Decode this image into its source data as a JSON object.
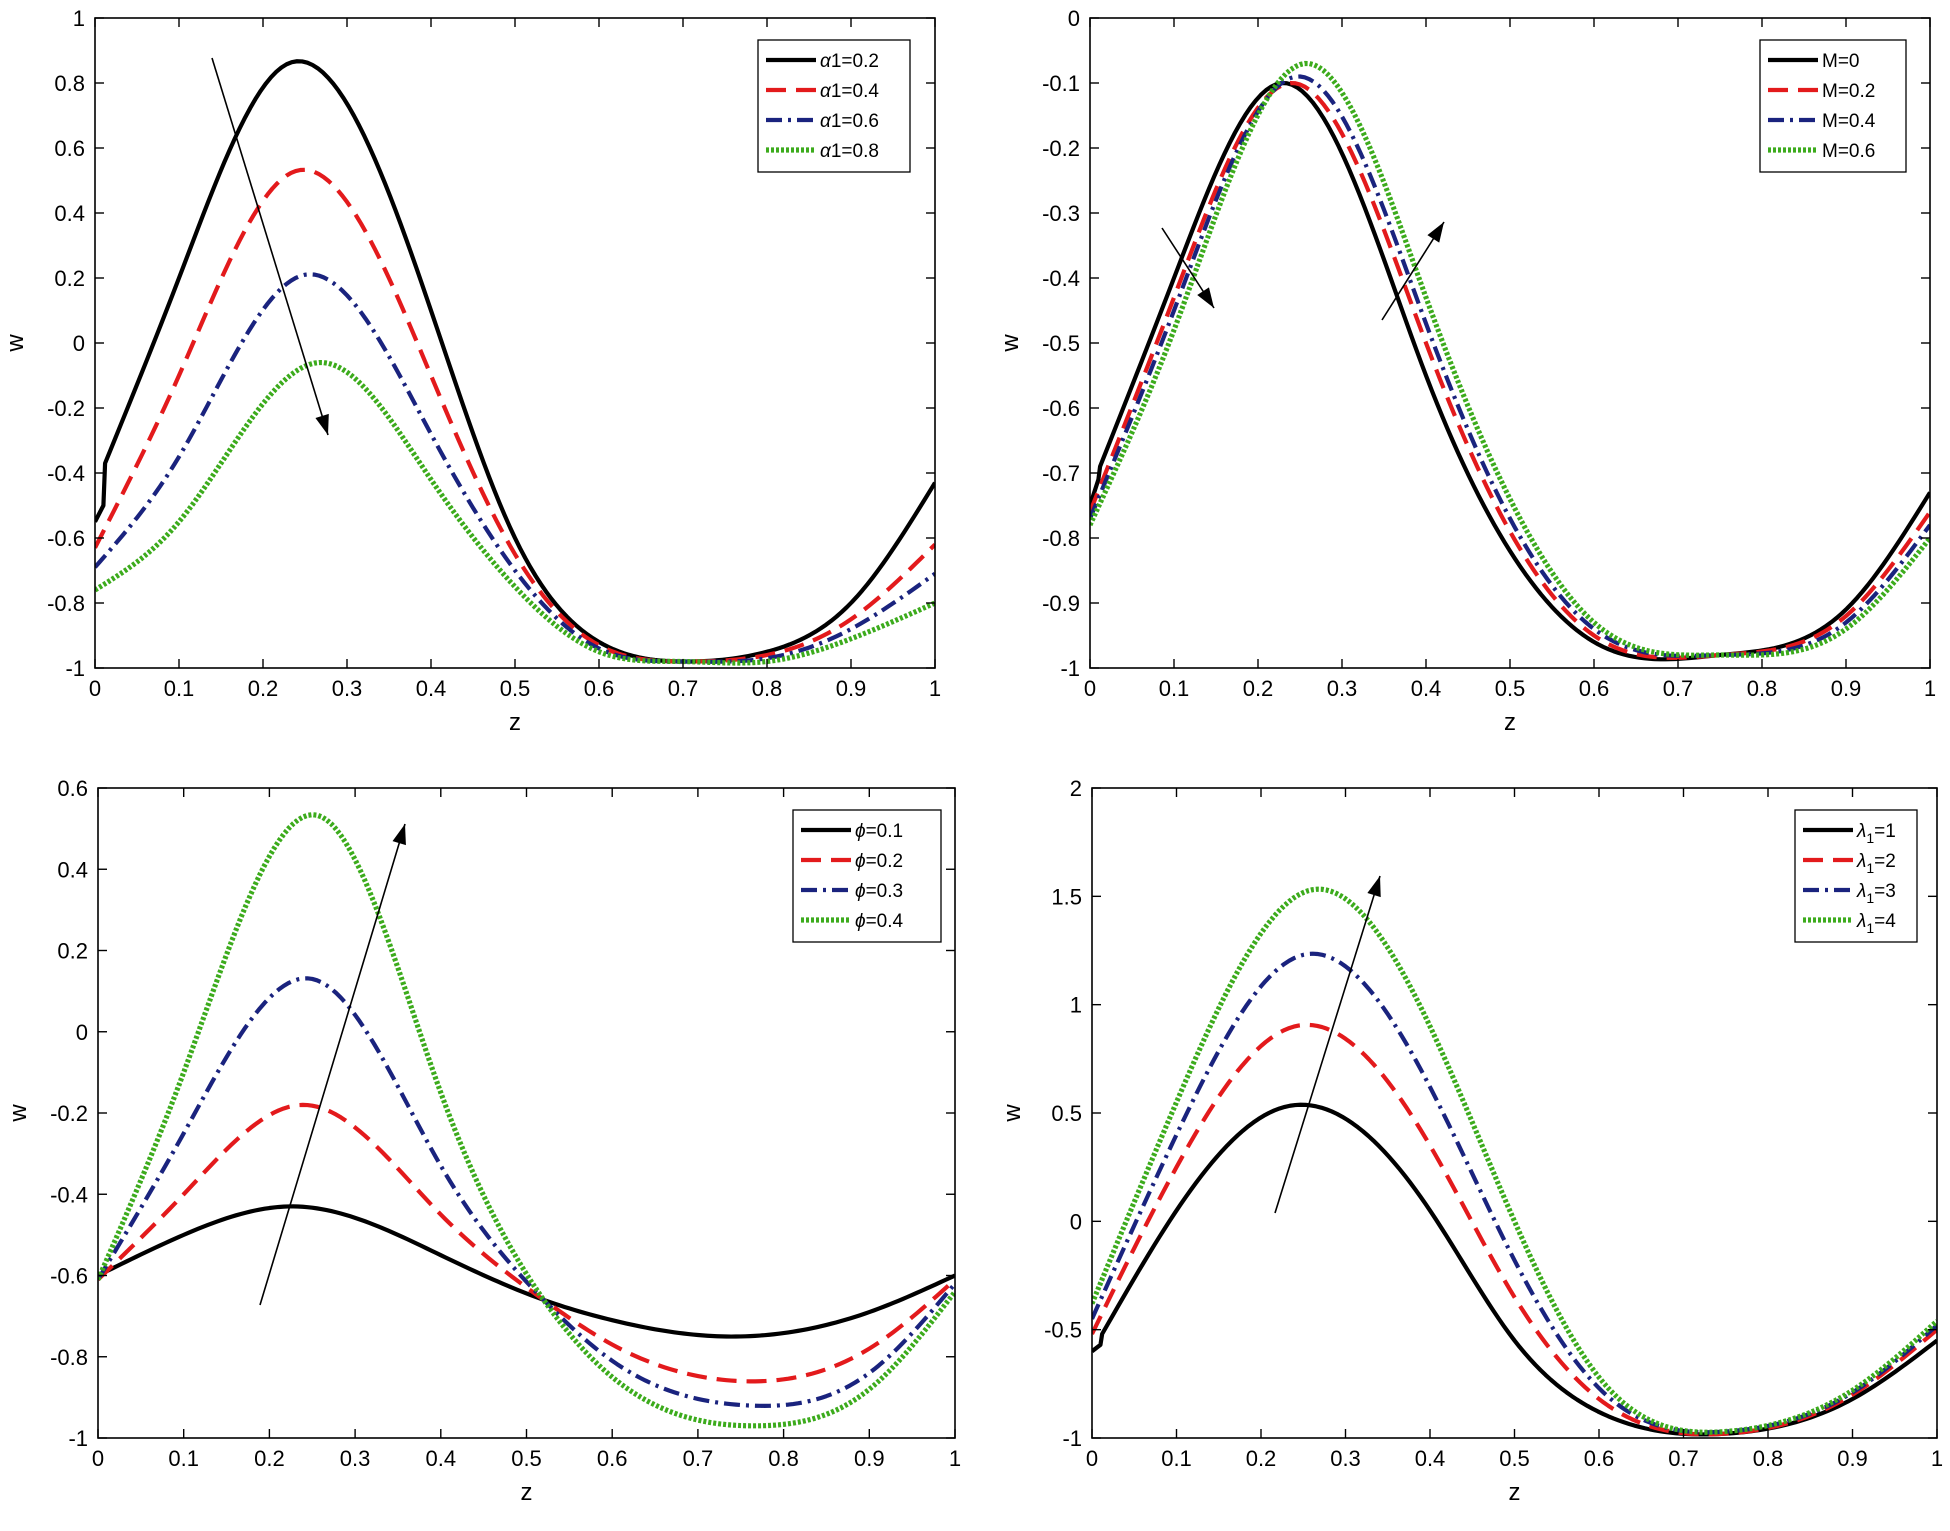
{
  "figure": {
    "colors": {
      "black": "#000000",
      "red": "#e31a1c",
      "blue": "#1a237e",
      "green": "#3cab1c"
    },
    "dash": {
      "solid": "",
      "dashed": "20,10",
      "dashdot": "16,6,3,6",
      "dotted": "3,2"
    }
  },
  "chart_data": [
    {
      "type": "line",
      "title": "",
      "xlabel": "z",
      "ylabel": "w",
      "xlim": [
        0,
        1
      ],
      "ylim": [
        -1,
        1
      ],
      "xticks": [
        0,
        0.1,
        0.2,
        0.3,
        0.4,
        0.5,
        0.6,
        0.7,
        0.8,
        0.9,
        1
      ],
      "xticklabels": [
        "0",
        "0.1",
        "0.2",
        "0.3",
        "0.4",
        "0.5",
        "0.6",
        "0.7",
        "0.8",
        "0.9",
        "1"
      ],
      "yticks": [
        -1,
        -0.8,
        -0.6,
        -0.4,
        -0.2,
        0,
        0.2,
        0.4,
        0.6,
        0.8,
        1
      ],
      "yticklabels": [
        "-1",
        "-0.8",
        "-0.6",
        "-0.4",
        "-0.2",
        "0",
        "0.2",
        "0.4",
        "0.6",
        "0.8",
        "1"
      ],
      "legend_position": "top-right",
      "arrow_direction": "decreasing peak",
      "series": [
        {
          "name": "α1=0.2",
          "style": "solid",
          "color": "#000000",
          "x": [
            0,
            0.01,
            0.012,
            0.1,
            0.23,
            0.4,
            0.5,
            0.6,
            0.7,
            0.8,
            0.9,
            1
          ],
          "y": [
            -0.55,
            -0.5,
            -0.37,
            0.2,
            0.86,
            0.1,
            -0.6,
            -0.92,
            -0.98,
            -0.95,
            -0.8,
            -0.43
          ]
        },
        {
          "name": "α1=0.4",
          "style": "dashed",
          "color": "#e31a1c",
          "x": [
            0,
            0.1,
            0.24,
            0.4,
            0.5,
            0.6,
            0.7,
            0.8,
            0.9,
            1
          ],
          "y": [
            -0.63,
            -0.1,
            0.53,
            -0.1,
            -0.65,
            -0.93,
            -0.98,
            -0.96,
            -0.85,
            -0.62
          ]
        },
        {
          "name": "α1=0.6",
          "style": "dashdot",
          "color": "#1a237e",
          "x": [
            0,
            0.1,
            0.25,
            0.4,
            0.5,
            0.6,
            0.7,
            0.8,
            0.9,
            1
          ],
          "y": [
            -0.69,
            -0.35,
            0.21,
            -0.28,
            -0.7,
            -0.94,
            -0.98,
            -0.97,
            -0.88,
            -0.71
          ]
        },
        {
          "name": "α1=0.8",
          "style": "dotted",
          "color": "#3cab1c",
          "x": [
            0,
            0.1,
            0.27,
            0.4,
            0.5,
            0.6,
            0.7,
            0.8,
            0.9,
            1
          ],
          "y": [
            -0.76,
            -0.55,
            -0.06,
            -0.42,
            -0.75,
            -0.95,
            -0.98,
            -0.98,
            -0.91,
            -0.8
          ]
        }
      ]
    },
    {
      "type": "line",
      "title": "",
      "xlabel": "z",
      "ylabel": "w",
      "xlim": [
        0,
        1
      ],
      "ylim": [
        -1,
        0
      ],
      "xticks": [
        0,
        0.1,
        0.2,
        0.3,
        0.4,
        0.5,
        0.6,
        0.7,
        0.8,
        0.9,
        1
      ],
      "xticklabels": [
        "0",
        "0.1",
        "0.2",
        "0.3",
        "0.4",
        "0.5",
        "0.6",
        "0.7",
        "0.8",
        "0.9",
        "1"
      ],
      "yticks": [
        -1,
        -0.9,
        -0.8,
        -0.7,
        -0.6,
        -0.5,
        -0.4,
        -0.3,
        -0.2,
        -0.1,
        0
      ],
      "yticklabels": [
        "-1",
        "-0.9",
        "-0.8",
        "-0.7",
        "-0.6",
        "-0.5",
        "-0.4",
        "-0.3",
        "-0.2",
        "-0.1",
        "0"
      ],
      "legend_position": "top-right",
      "arrow_direction": "shift right",
      "series": [
        {
          "name": "M=0",
          "style": "solid",
          "color": "#000000",
          "x": [
            0,
            0.01,
            0.012,
            0.1,
            0.23,
            0.4,
            0.5,
            0.6,
            0.75,
            0.9,
            1
          ],
          "y": [
            -0.75,
            -0.71,
            -0.69,
            -0.4,
            -0.1,
            -0.55,
            -0.82,
            -0.96,
            -0.98,
            -0.91,
            -0.73
          ]
        },
        {
          "name": "M=0.2",
          "style": "dashed",
          "color": "#e31a1c",
          "x": [
            0,
            0.1,
            0.24,
            0.4,
            0.5,
            0.6,
            0.75,
            0.9,
            1
          ],
          "y": [
            -0.76,
            -0.43,
            -0.1,
            -0.5,
            -0.79,
            -0.95,
            -0.98,
            -0.92,
            -0.76
          ]
        },
        {
          "name": "M=0.4",
          "style": "dashdot",
          "color": "#1a237e",
          "x": [
            0,
            0.1,
            0.25,
            0.4,
            0.5,
            0.6,
            0.75,
            0.9,
            1
          ],
          "y": [
            -0.77,
            -0.45,
            -0.09,
            -0.47,
            -0.77,
            -0.94,
            -0.98,
            -0.93,
            -0.78
          ]
        },
        {
          "name": "M=0.6",
          "style": "dotted",
          "color": "#3cab1c",
          "x": [
            0,
            0.1,
            0.26,
            0.4,
            0.5,
            0.6,
            0.75,
            0.9,
            1
          ],
          "y": [
            -0.78,
            -0.48,
            -0.07,
            -0.43,
            -0.74,
            -0.93,
            -0.98,
            -0.94,
            -0.8
          ]
        }
      ]
    },
    {
      "type": "line",
      "title": "",
      "xlabel": "z",
      "ylabel": "w",
      "xlim": [
        0,
        1
      ],
      "ylim": [
        -1,
        0.6
      ],
      "xticks": [
        0,
        0.1,
        0.2,
        0.3,
        0.4,
        0.5,
        0.6,
        0.7,
        0.8,
        0.9,
        1
      ],
      "xticklabels": [
        "0",
        "0.1",
        "0.2",
        "0.3",
        "0.4",
        "0.5",
        "0.6",
        "0.7",
        "0.8",
        "0.9",
        "1"
      ],
      "yticks": [
        -1,
        -0.8,
        -0.6,
        -0.4,
        -0.2,
        0,
        0.2,
        0.4,
        0.6
      ],
      "yticklabels": [
        "-1",
        "-0.8",
        "-0.6",
        "-0.4",
        "-0.2",
        "0",
        "0.2",
        "0.4",
        "0.6"
      ],
      "legend_position": "top-right",
      "arrow_direction": "increasing peak",
      "series": [
        {
          "name": "ϕ=0.1",
          "style": "solid",
          "color": "#000000",
          "x": [
            0,
            0.1,
            0.23,
            0.4,
            0.52,
            0.6,
            0.73,
            0.9,
            1
          ],
          "y": [
            -0.6,
            -0.5,
            -0.43,
            -0.55,
            -0.66,
            -0.71,
            -0.75,
            -0.69,
            -0.6
          ]
        },
        {
          "name": "ϕ=0.2",
          "style": "dashed",
          "color": "#e31a1c",
          "x": [
            0,
            0.1,
            0.24,
            0.4,
            0.52,
            0.6,
            0.75,
            0.9,
            1
          ],
          "y": [
            -0.61,
            -0.4,
            -0.18,
            -0.45,
            -0.66,
            -0.77,
            -0.86,
            -0.78,
            -0.61
          ]
        },
        {
          "name": "ϕ=0.3",
          "style": "dashdot",
          "color": "#1a237e",
          "x": [
            0,
            0.1,
            0.25,
            0.4,
            0.52,
            0.6,
            0.76,
            0.9,
            1
          ],
          "y": [
            -0.61,
            -0.25,
            0.13,
            -0.33,
            -0.66,
            -0.81,
            -0.92,
            -0.84,
            -0.62
          ]
        },
        {
          "name": "ϕ=0.4",
          "style": "dotted",
          "color": "#3cab1c",
          "x": [
            0,
            0.1,
            0.26,
            0.4,
            0.52,
            0.6,
            0.77,
            0.9,
            1
          ],
          "y": [
            -0.61,
            -0.1,
            0.53,
            -0.15,
            -0.66,
            -0.85,
            -0.97,
            -0.88,
            -0.64
          ]
        }
      ]
    },
    {
      "type": "line",
      "title": "",
      "xlabel": "z",
      "ylabel": "w",
      "xlim": [
        0,
        1
      ],
      "ylim": [
        -1,
        2
      ],
      "xticks": [
        0,
        0.1,
        0.2,
        0.3,
        0.4,
        0.5,
        0.6,
        0.7,
        0.8,
        0.9,
        1
      ],
      "xticklabels": [
        "0",
        "0.1",
        "0.2",
        "0.3",
        "0.4",
        "0.5",
        "0.6",
        "0.7",
        "0.8",
        "0.9",
        "1"
      ],
      "yticks": [
        -1,
        -0.5,
        0,
        0.5,
        1,
        1.5,
        2
      ],
      "yticklabels": [
        "-1",
        "-0.5",
        "0",
        "0.5",
        "1",
        "1.5",
        "2"
      ],
      "legend_position": "top-right",
      "arrow_direction": "increasing peak",
      "series": [
        {
          "name": "λ1=1",
          "style": "solid",
          "color": "#000000",
          "x": [
            0,
            0.01,
            0.012,
            0.1,
            0.23,
            0.4,
            0.5,
            0.6,
            0.75,
            0.9,
            1
          ],
          "y": [
            -0.6,
            -0.57,
            -0.52,
            0.05,
            0.53,
            0.05,
            -0.55,
            -0.88,
            -0.98,
            -0.82,
            -0.55
          ]
        },
        {
          "name": "λ1=2",
          "style": "dashed",
          "color": "#e31a1c",
          "x": [
            0,
            0.1,
            0.24,
            0.4,
            0.5,
            0.6,
            0.75,
            0.9,
            1
          ],
          "y": [
            -0.52,
            0.25,
            0.9,
            0.35,
            -0.35,
            -0.82,
            -0.98,
            -0.8,
            -0.5
          ]
        },
        {
          "name": "λ1=3",
          "style": "dashdot",
          "color": "#1a237e",
          "x": [
            0,
            0.1,
            0.25,
            0.4,
            0.5,
            0.6,
            0.75,
            0.9,
            1
          ],
          "y": [
            -0.45,
            0.4,
            1.23,
            0.62,
            -0.18,
            -0.77,
            -0.97,
            -0.79,
            -0.48
          ]
        },
        {
          "name": "λ1=4",
          "style": "dotted",
          "color": "#3cab1c",
          "x": [
            0,
            0.1,
            0.26,
            0.4,
            0.5,
            0.6,
            0.75,
            0.9,
            1
          ],
          "y": [
            -0.38,
            0.55,
            1.53,
            0.9,
            0.0,
            -0.72,
            -0.97,
            -0.78,
            -0.46
          ]
        }
      ]
    }
  ]
}
